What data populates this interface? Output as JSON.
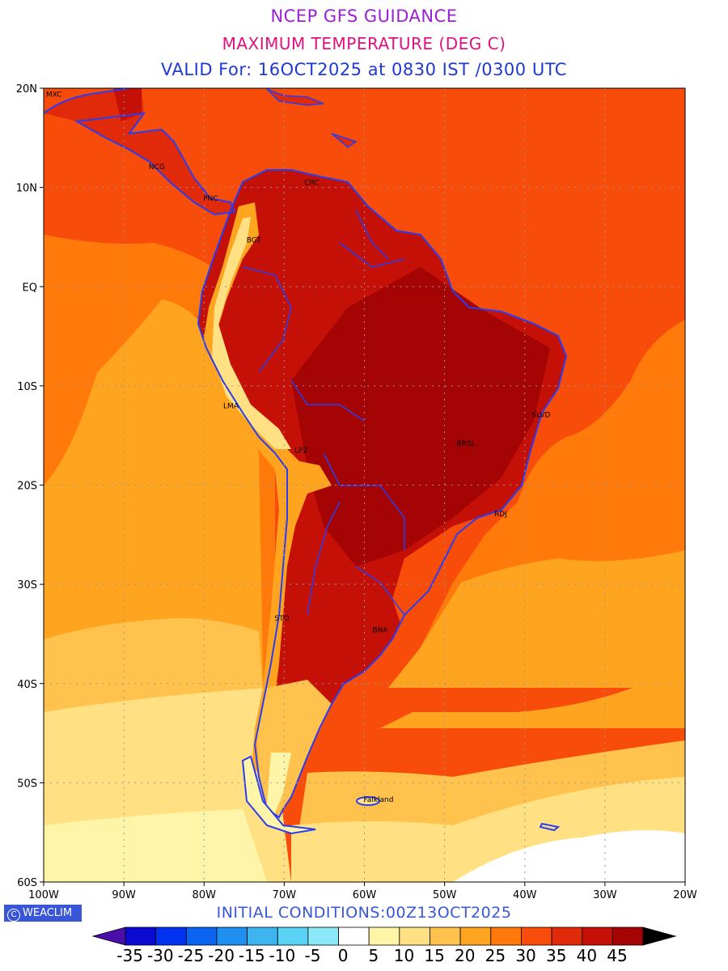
{
  "title": {
    "line1": "NCEP GFS GUIDANCE",
    "line2": "MAXIMUM TEMPERATURE (DEG C)",
    "line3": "VALID For: 16OCT2025 at 0830 IST /0300 UTC"
  },
  "footer": {
    "brand": "WEACLIM",
    "initial_conditions": "INITIAL CONDITIONS:00Z13OCT2025"
  },
  "map": {
    "lon_range": [
      -100,
      -20
    ],
    "lat_range": [
      -60,
      20
    ],
    "lat_ticks": [
      {
        "value": 20,
        "label": "20N"
      },
      {
        "value": 10,
        "label": "10N"
      },
      {
        "value": 0,
        "label": "EQ"
      },
      {
        "value": -10,
        "label": "10S"
      },
      {
        "value": -20,
        "label": "20S"
      },
      {
        "value": -30,
        "label": "30S"
      },
      {
        "value": -40,
        "label": "40S"
      },
      {
        "value": -50,
        "label": "50S"
      },
      {
        "value": -60,
        "label": "60S"
      }
    ],
    "lon_ticks": [
      {
        "value": -100,
        "label": "100W"
      },
      {
        "value": -90,
        "label": "90W"
      },
      {
        "value": -80,
        "label": "80W"
      },
      {
        "value": -70,
        "label": "70W"
      },
      {
        "value": -60,
        "label": "60W"
      },
      {
        "value": -50,
        "label": "50W"
      },
      {
        "value": -40,
        "label": "40W"
      },
      {
        "value": -30,
        "label": "30W"
      },
      {
        "value": -20,
        "label": "20W"
      }
    ],
    "cities": [
      {
        "code": "MXC",
        "lon": -99.1,
        "lat": 19.4
      },
      {
        "code": "NCG",
        "lon": -86.3,
        "lat": 12.1
      },
      {
        "code": "CRC",
        "lon": -66.9,
        "lat": 10.5
      },
      {
        "code": "PNC",
        "lon": -79.5,
        "lat": 8.9
      },
      {
        "code": "BGT",
        "lon": -74.1,
        "lat": 4.7
      },
      {
        "code": "LMA",
        "lon": -77.0,
        "lat": -12.0
      },
      {
        "code": "LPZ",
        "lon": -68.1,
        "lat": -16.5
      },
      {
        "code": "SLVD",
        "lon": -38.5,
        "lat": -12.9
      },
      {
        "code": "BRSL",
        "lon": -47.9,
        "lat": -15.8
      },
      {
        "code": "RDJ",
        "lon": -43.2,
        "lat": -22.9
      },
      {
        "code": "STO",
        "lon": -70.6,
        "lat": -33.4
      },
      {
        "code": "BNA",
        "lon": -58.4,
        "lat": -34.6
      },
      {
        "code": "Falkland",
        "lon": -59.5,
        "lat": -51.7
      }
    ]
  },
  "colorbar": {
    "labels": [
      "-35",
      "-30",
      "-25",
      "-20",
      "-15",
      "-10",
      "-5",
      "0",
      "5",
      "10",
      "15",
      "20",
      "25",
      "30",
      "35",
      "40",
      "45"
    ],
    "under_color": "#4a0fa8",
    "over_color": "#000000",
    "colors": [
      "#0a0ad0",
      "#0032f0",
      "#0a64f0",
      "#1e90f0",
      "#3cb4f0",
      "#5ad2f5",
      "#8ceaf8",
      "#ffffff",
      "#fff5a8",
      "#ffe082",
      "#ffc34d",
      "#ffa41e",
      "#ff7a0a",
      "#f84c0a",
      "#e02a0a",
      "#c41006",
      "#a50404"
    ]
  },
  "colors": {
    "coast": "#2a3df0",
    "grid": "#999999"
  }
}
